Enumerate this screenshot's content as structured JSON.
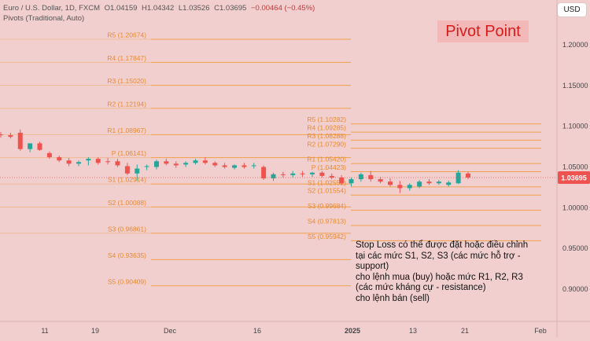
{
  "header": {
    "instrument": "Euro / U.S. Dollar, 1D, FXCM",
    "open": "O1.04159",
    "high": "H1.04342",
    "low": "L1.03526",
    "close": "C1.03695",
    "change": "−0.00464 (−0.45%)",
    "indicator": "Pivots (Traditional, Auto)"
  },
  "badge": "Pivot Point",
  "currency_button": "USD",
  "note_lines": [
    "Stop Loss có thể được đặt hoặc điều chỉnh",
    "tại các mức S1, S2, S3 (các mức hỗ trợ -",
    "support)",
    "cho lệnh mua (buy) hoặc mức R1, R2, R3",
    "(các mức kháng cự - resistance)",
    "cho lệnh bán (sell)"
  ],
  "colors": {
    "background": "#f2cfcf",
    "up": "#26a69a",
    "down": "#ef5350",
    "pivot_line": "#f0a04a",
    "pivot_text": "#e98a2a",
    "badge_text": "#d81b1b",
    "price_tag": "#ef5350"
  },
  "chart_data": {
    "type": "candlestick",
    "title": "Euro / U.S. Dollar, 1D, FXCM",
    "xlabel": "",
    "ylabel": "",
    "ylim": [
      0.85,
      1.245
    ],
    "y_ticks": [
      "1.20000",
      "1.15000",
      "1.10000",
      "1.05000",
      "1.00000",
      "0.95000",
      "0.90000"
    ],
    "x_ticks": [
      "11",
      "19",
      "Dec",
      "16",
      "2025",
      "13",
      "21",
      "Feb"
    ],
    "last_price": "1.03695",
    "candles": [
      {
        "o": 1.09,
        "h": 1.093,
        "l": 1.086,
        "c": 1.089
      },
      {
        "o": 1.089,
        "h": 1.092,
        "l": 1.085,
        "c": 1.087
      },
      {
        "o": 1.092,
        "h": 1.096,
        "l": 1.07,
        "c": 1.072
      },
      {
        "o": 1.072,
        "h": 1.079,
        "l": 1.068,
        "c": 1.079
      },
      {
        "o": 1.079,
        "h": 1.081,
        "l": 1.07,
        "c": 1.071
      },
      {
        "o": 1.067,
        "h": 1.069,
        "l": 1.06,
        "c": 1.062
      },
      {
        "o": 1.062,
        "h": 1.064,
        "l": 1.056,
        "c": 1.058
      },
      {
        "o": 1.058,
        "h": 1.061,
        "l": 1.051,
        "c": 1.054
      },
      {
        "o": 1.054,
        "h": 1.058,
        "l": 1.051,
        "c": 1.056
      },
      {
        "o": 1.058,
        "h": 1.062,
        "l": 1.052,
        "c": 1.06
      },
      {
        "o": 1.06,
        "h": 1.062,
        "l": 1.053,
        "c": 1.055
      },
      {
        "o": 1.057,
        "h": 1.061,
        "l": 1.053,
        "c": 1.056
      },
      {
        "o": 1.057,
        "h": 1.06,
        "l": 1.05,
        "c": 1.052
      },
      {
        "o": 1.051,
        "h": 1.055,
        "l": 1.04,
        "c": 1.042
      },
      {
        "o": 1.042,
        "h": 1.053,
        "l": 1.033,
        "c": 1.048
      },
      {
        "o": 1.05,
        "h": 1.053,
        "l": 1.046,
        "c": 1.051
      },
      {
        "o": 1.05,
        "h": 1.059,
        "l": 1.047,
        "c": 1.057
      },
      {
        "o": 1.057,
        "h": 1.06,
        "l": 1.052,
        "c": 1.054
      },
      {
        "o": 1.054,
        "h": 1.057,
        "l": 1.049,
        "c": 1.052
      },
      {
        "o": 1.053,
        "h": 1.057,
        "l": 1.05,
        "c": 1.055
      },
      {
        "o": 1.055,
        "h": 1.06,
        "l": 1.053,
        "c": 1.058
      },
      {
        "o": 1.058,
        "h": 1.062,
        "l": 1.053,
        "c": 1.055
      },
      {
        "o": 1.055,
        "h": 1.057,
        "l": 1.05,
        "c": 1.052
      },
      {
        "o": 1.052,
        "h": 1.055,
        "l": 1.048,
        "c": 1.05
      },
      {
        "o": 1.049,
        "h": 1.053,
        "l": 1.047,
        "c": 1.052
      },
      {
        "o": 1.052,
        "h": 1.055,
        "l": 1.048,
        "c": 1.05
      },
      {
        "o": 1.051,
        "h": 1.055,
        "l": 1.048,
        "c": 1.052
      },
      {
        "o": 1.05,
        "h": 1.052,
        "l": 1.034,
        "c": 1.036
      },
      {
        "o": 1.036,
        "h": 1.043,
        "l": 1.033,
        "c": 1.041
      },
      {
        "o": 1.041,
        "h": 1.044,
        "l": 1.037,
        "c": 1.04
      },
      {
        "o": 1.04,
        "h": 1.045,
        "l": 1.037,
        "c": 1.042
      },
      {
        "o": 1.042,
        "h": 1.045,
        "l": 1.038,
        "c": 1.041
      },
      {
        "o": 1.041,
        "h": 1.044,
        "l": 1.038,
        "c": 1.043
      },
      {
        "o": 1.043,
        "h": 1.045,
        "l": 1.037,
        "c": 1.039
      },
      {
        "o": 1.039,
        "h": 1.042,
        "l": 1.035,
        "c": 1.037
      },
      {
        "o": 1.037,
        "h": 1.04,
        "l": 1.028,
        "c": 1.03
      },
      {
        "o": 1.03,
        "h": 1.037,
        "l": 1.026,
        "c": 1.035
      },
      {
        "o": 1.035,
        "h": 1.043,
        "l": 1.032,
        "c": 1.041
      },
      {
        "o": 1.04,
        "h": 1.045,
        "l": 1.032,
        "c": 1.035
      },
      {
        "o": 1.035,
        "h": 1.038,
        "l": 1.03,
        "c": 1.032
      },
      {
        "o": 1.032,
        "h": 1.036,
        "l": 1.026,
        "c": 1.028
      },
      {
        "o": 1.028,
        "h": 1.033,
        "l": 1.018,
        "c": 1.024
      },
      {
        "o": 1.024,
        "h": 1.03,
        "l": 1.021,
        "c": 1.028
      },
      {
        "o": 1.026,
        "h": 1.034,
        "l": 1.024,
        "c": 1.032
      },
      {
        "o": 1.032,
        "h": 1.035,
        "l": 1.028,
        "c": 1.03
      },
      {
        "o": 1.03,
        "h": 1.034,
        "l": 1.028,
        "c": 1.032
      },
      {
        "o": 1.028,
        "h": 1.033,
        "l": 1.026,
        "c": 1.031
      },
      {
        "o": 1.03,
        "h": 1.046,
        "l": 1.029,
        "c": 1.043
      },
      {
        "o": 1.042,
        "h": 1.044,
        "l": 1.035,
        "c": 1.037
      }
    ],
    "pivot_sets": [
      {
        "levels": [
          {
            "label": "R5 (1.20674)",
            "value": 1.20674
          },
          {
            "label": "R4 (1.17847)",
            "value": 1.17847
          },
          {
            "label": "R3 (1.15020)",
            "value": 1.1502
          },
          {
            "label": "R2 (1.12194)",
            "value": 1.12194
          },
          {
            "label": "R1 (1.08967)",
            "value": 1.08967
          },
          {
            "label": "P (1.06141)",
            "value": 1.06141
          },
          {
            "label": "S1 (1.02914)",
            "value": 1.02914
          },
          {
            "label": "S2 (1.00088)",
            "value": 1.00088
          },
          {
            "label": "S3 (0.96861)",
            "value": 0.96861
          },
          {
            "label": "S4 (0.93635)",
            "value": 0.93635
          },
          {
            "label": "S5 (0.90409)",
            "value": 0.90409
          }
        ]
      },
      {
        "levels": [
          {
            "label": "R5 (1.10282)",
            "value": 1.10282
          },
          {
            "label": "R4 (1.09285)",
            "value": 1.09285
          },
          {
            "label": "R3 (1.08288)",
            "value": 1.08288
          },
          {
            "label": "R2 (1.07290)",
            "value": 1.0729
          },
          {
            "label": "R1 (1.05420)",
            "value": 1.0542
          },
          {
            "label": "P (1.04423)",
            "value": 1.04423
          },
          {
            "label": "S1 (1.02552)",
            "value": 1.02552
          },
          {
            "label": "S2 (1.01554)",
            "value": 1.01554
          },
          {
            "label": "S3 (0.99684)",
            "value": 0.99684
          },
          {
            "label": "S4 (0.97813)",
            "value": 0.97813
          },
          {
            "label": "S5 (0.95942)",
            "value": 0.95942
          }
        ]
      }
    ]
  }
}
